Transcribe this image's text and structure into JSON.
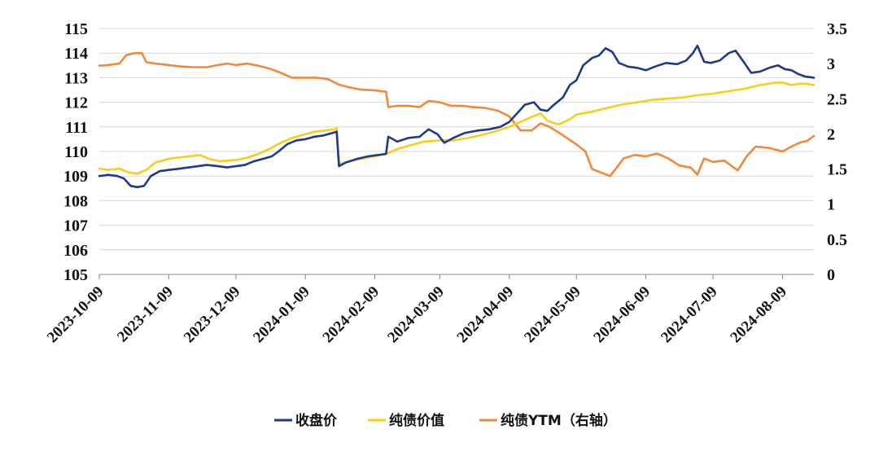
{
  "chart_data": {
    "type": "line",
    "title": "",
    "xlabel": "",
    "ylabel": "",
    "y_left": {
      "ylim": [
        105,
        115
      ],
      "ticks": [
        "105",
        "106",
        "107",
        "108",
        "109",
        "110",
        "111",
        "112",
        "113",
        "114",
        "115"
      ]
    },
    "y_right": {
      "ylim": [
        0,
        3.5
      ],
      "ticks": [
        "0",
        "0.5",
        "1",
        "1.5",
        "2",
        "2.5",
        "3",
        "3.5"
      ]
    },
    "x_range": [
      "2023-10-09",
      "2024-08-23"
    ],
    "x_ticks": [
      "2023-10-09",
      "2023-11-09",
      "2023-12-09",
      "2024-01-09",
      "2024-02-09",
      "2024-03-09",
      "2024-04-09",
      "2024-05-09",
      "2024-06-09",
      "2024-07-09",
      "2024-08-09"
    ],
    "grid": "horizontal",
    "legend": "bottom-center",
    "series": [
      {
        "name": "收盘价",
        "axis": "left",
        "color": "#1f3a8c",
        "points": [
          [
            "2023-10-09",
            109.0
          ],
          [
            "2023-10-13",
            109.05
          ],
          [
            "2023-10-17",
            109.0
          ],
          [
            "2023-10-20",
            108.9
          ],
          [
            "2023-10-23",
            108.6
          ],
          [
            "2023-10-26",
            108.55
          ],
          [
            "2023-10-29",
            108.6
          ],
          [
            "2023-11-01",
            109.0
          ],
          [
            "2023-11-05",
            109.2
          ],
          [
            "2023-11-09",
            109.25
          ],
          [
            "2023-11-14",
            109.3
          ],
          [
            "2023-11-18",
            109.35
          ],
          [
            "2023-11-22",
            109.4
          ],
          [
            "2023-11-26",
            109.45
          ],
          [
            "2023-12-01",
            109.4
          ],
          [
            "2023-12-05",
            109.35
          ],
          [
            "2023-12-09",
            109.4
          ],
          [
            "2023-12-13",
            109.45
          ],
          [
            "2023-12-17",
            109.6
          ],
          [
            "2023-12-21",
            109.7
          ],
          [
            "2023-12-25",
            109.8
          ],
          [
            "2023-12-28",
            110.0
          ],
          [
            "2024-01-01",
            110.3
          ],
          [
            "2024-01-05",
            110.45
          ],
          [
            "2024-01-09",
            110.5
          ],
          [
            "2024-01-13",
            110.6
          ],
          [
            "2024-01-17",
            110.65
          ],
          [
            "2024-01-21",
            110.75
          ],
          [
            "2024-01-23",
            110.8
          ],
          [
            "2024-01-24",
            109.4
          ],
          [
            "2024-01-27",
            109.55
          ],
          [
            "2024-02-01",
            109.7
          ],
          [
            "2024-02-06",
            109.8
          ],
          [
            "2024-02-10",
            109.85
          ],
          [
            "2024-02-14",
            109.9
          ],
          [
            "2024-02-15",
            110.6
          ],
          [
            "2024-02-19",
            110.4
          ],
          [
            "2024-02-24",
            110.55
          ],
          [
            "2024-02-29",
            110.6
          ],
          [
            "2024-03-04",
            110.9
          ],
          [
            "2024-03-08",
            110.7
          ],
          [
            "2024-03-11",
            110.35
          ],
          [
            "2024-03-15",
            110.55
          ],
          [
            "2024-03-20",
            110.75
          ],
          [
            "2024-03-26",
            110.85
          ],
          [
            "2024-03-31",
            110.9
          ],
          [
            "2024-04-05",
            111.0
          ],
          [
            "2024-04-09",
            111.2
          ],
          [
            "2024-04-13",
            111.6
          ],
          [
            "2024-04-16",
            111.9
          ],
          [
            "2024-04-20",
            112.0
          ],
          [
            "2024-04-23",
            111.7
          ],
          [
            "2024-04-26",
            111.65
          ],
          [
            "2024-04-29",
            111.9
          ],
          [
            "2024-05-03",
            112.2
          ],
          [
            "2024-05-06",
            112.7
          ],
          [
            "2024-05-09",
            112.9
          ],
          [
            "2024-05-12",
            113.5
          ],
          [
            "2024-05-16",
            113.8
          ],
          [
            "2024-05-19",
            113.9
          ],
          [
            "2024-05-22",
            114.2
          ],
          [
            "2024-05-25",
            114.05
          ],
          [
            "2024-05-28",
            113.6
          ],
          [
            "2024-06-01",
            113.45
          ],
          [
            "2024-06-05",
            113.4
          ],
          [
            "2024-06-09",
            113.3
          ],
          [
            "2024-06-13",
            113.45
          ],
          [
            "2024-06-18",
            113.6
          ],
          [
            "2024-06-23",
            113.55
          ],
          [
            "2024-06-27",
            113.7
          ],
          [
            "2024-06-30",
            114.0
          ],
          [
            "2024-07-02",
            114.3
          ],
          [
            "2024-07-05",
            113.65
          ],
          [
            "2024-07-08",
            113.6
          ],
          [
            "2024-07-12",
            113.7
          ],
          [
            "2024-07-16",
            114.0
          ],
          [
            "2024-07-19",
            114.1
          ],
          [
            "2024-07-23",
            113.6
          ],
          [
            "2024-07-26",
            113.2
          ],
          [
            "2024-07-30",
            113.25
          ],
          [
            "2024-08-03",
            113.4
          ],
          [
            "2024-08-07",
            113.5
          ],
          [
            "2024-08-10",
            113.35
          ],
          [
            "2024-08-13",
            113.3
          ],
          [
            "2024-08-16",
            113.15
          ],
          [
            "2024-08-19",
            113.05
          ],
          [
            "2024-08-23",
            113.0
          ]
        ]
      },
      {
        "name": "纯债价值",
        "axis": "left",
        "color": "#f5cf1b",
        "points": [
          [
            "2023-10-09",
            109.3
          ],
          [
            "2023-10-13",
            109.25
          ],
          [
            "2023-10-18",
            109.3
          ],
          [
            "2023-10-22",
            109.15
          ],
          [
            "2023-10-26",
            109.1
          ],
          [
            "2023-10-30",
            109.25
          ],
          [
            "2023-11-03",
            109.55
          ],
          [
            "2023-11-09",
            109.7
          ],
          [
            "2023-11-13",
            109.75
          ],
          [
            "2023-11-18",
            109.8
          ],
          [
            "2023-11-23",
            109.85
          ],
          [
            "2023-11-27",
            109.7
          ],
          [
            "2023-12-02",
            109.6
          ],
          [
            "2023-12-09",
            109.65
          ],
          [
            "2023-12-14",
            109.75
          ],
          [
            "2023-12-19",
            109.9
          ],
          [
            "2023-12-24",
            110.1
          ],
          [
            "2023-12-29",
            110.35
          ],
          [
            "2024-01-03",
            110.55
          ],
          [
            "2024-01-09",
            110.7
          ],
          [
            "2024-01-13",
            110.8
          ],
          [
            "2024-01-18",
            110.85
          ],
          [
            "2024-01-22",
            110.9
          ],
          [
            "2024-01-23",
            110.95
          ],
          [
            "2024-01-24",
            109.5
          ],
          [
            "2024-01-29",
            109.6
          ],
          [
            "2024-02-03",
            109.7
          ],
          [
            "2024-02-09",
            109.8
          ],
          [
            "2024-02-14",
            109.9
          ],
          [
            "2024-02-19",
            110.1
          ],
          [
            "2024-02-25",
            110.25
          ],
          [
            "2024-03-02",
            110.4
          ],
          [
            "2024-03-09",
            110.45
          ],
          [
            "2024-03-15",
            110.45
          ],
          [
            "2024-03-22",
            110.55
          ],
          [
            "2024-03-29",
            110.7
          ],
          [
            "2024-04-04",
            110.85
          ],
          [
            "2024-04-09",
            111.0
          ],
          [
            "2024-04-14",
            111.2
          ],
          [
            "2024-04-19",
            111.4
          ],
          [
            "2024-04-23",
            111.55
          ],
          [
            "2024-04-26",
            111.25
          ],
          [
            "2024-05-01",
            111.1
          ],
          [
            "2024-05-06",
            111.3
          ],
          [
            "2024-05-09",
            111.5
          ],
          [
            "2024-05-15",
            111.6
          ],
          [
            "2024-05-22",
            111.75
          ],
          [
            "2024-05-29",
            111.9
          ],
          [
            "2024-06-05",
            112.0
          ],
          [
            "2024-06-12",
            112.1
          ],
          [
            "2024-06-19",
            112.15
          ],
          [
            "2024-06-26",
            112.2
          ],
          [
            "2024-07-03",
            112.3
          ],
          [
            "2024-07-09",
            112.35
          ],
          [
            "2024-07-16",
            112.45
          ],
          [
            "2024-07-23",
            112.55
          ],
          [
            "2024-07-30",
            112.7
          ],
          [
            "2024-08-06",
            112.8
          ],
          [
            "2024-08-09",
            112.8
          ],
          [
            "2024-08-13",
            112.7
          ],
          [
            "2024-08-16",
            112.75
          ],
          [
            "2024-08-19",
            112.75
          ],
          [
            "2024-08-23",
            112.7
          ]
        ]
      },
      {
        "name": "纯债YTM（右轴）",
        "axis": "right",
        "color": "#ee8a3c",
        "points": [
          [
            "2023-10-09",
            2.97
          ],
          [
            "2023-10-13",
            2.98
          ],
          [
            "2023-10-18",
            3.0
          ],
          [
            "2023-10-21",
            3.12
          ],
          [
            "2023-10-25",
            3.15
          ],
          [
            "2023-10-28",
            3.15
          ],
          [
            "2023-10-30",
            3.02
          ],
          [
            "2023-11-03",
            3.0
          ],
          [
            "2023-11-09",
            2.98
          ],
          [
            "2023-11-14",
            2.96
          ],
          [
            "2023-11-20",
            2.95
          ],
          [
            "2023-11-26",
            2.95
          ],
          [
            "2023-12-01",
            2.98
          ],
          [
            "2023-12-05",
            3.0
          ],
          [
            "2023-12-09",
            2.98
          ],
          [
            "2023-12-14",
            3.0
          ],
          [
            "2023-12-19",
            2.97
          ],
          [
            "2023-12-24",
            2.93
          ],
          [
            "2023-12-29",
            2.87
          ],
          [
            "2024-01-03",
            2.8
          ],
          [
            "2024-01-09",
            2.8
          ],
          [
            "2024-01-14",
            2.8
          ],
          [
            "2024-01-19",
            2.78
          ],
          [
            "2024-01-24",
            2.7
          ],
          [
            "2024-01-29",
            2.66
          ],
          [
            "2024-02-03",
            2.63
          ],
          [
            "2024-02-09",
            2.62
          ],
          [
            "2024-02-14",
            2.6
          ],
          [
            "2024-02-15",
            2.38
          ],
          [
            "2024-02-19",
            2.4
          ],
          [
            "2024-02-24",
            2.4
          ],
          [
            "2024-02-29",
            2.38
          ],
          [
            "2024-03-04",
            2.47
          ],
          [
            "2024-03-09",
            2.45
          ],
          [
            "2024-03-14",
            2.4
          ],
          [
            "2024-03-19",
            2.4
          ],
          [
            "2024-03-24",
            2.38
          ],
          [
            "2024-03-29",
            2.37
          ],
          [
            "2024-04-04",
            2.33
          ],
          [
            "2024-04-09",
            2.25
          ],
          [
            "2024-04-14",
            2.05
          ],
          [
            "2024-04-19",
            2.05
          ],
          [
            "2024-04-23",
            2.15
          ],
          [
            "2024-04-27",
            2.1
          ],
          [
            "2024-05-02",
            2.0
          ],
          [
            "2024-05-09",
            1.85
          ],
          [
            "2024-05-13",
            1.75
          ],
          [
            "2024-05-16",
            1.5
          ],
          [
            "2024-05-20",
            1.45
          ],
          [
            "2024-05-24",
            1.4
          ],
          [
            "2024-05-27",
            1.52
          ],
          [
            "2024-05-30",
            1.65
          ],
          [
            "2024-06-04",
            1.7
          ],
          [
            "2024-06-09",
            1.68
          ],
          [
            "2024-06-14",
            1.72
          ],
          [
            "2024-06-19",
            1.65
          ],
          [
            "2024-06-24",
            1.55
          ],
          [
            "2024-06-29",
            1.52
          ],
          [
            "2024-07-02",
            1.42
          ],
          [
            "2024-07-05",
            1.65
          ],
          [
            "2024-07-09",
            1.6
          ],
          [
            "2024-07-14",
            1.62
          ],
          [
            "2024-07-20",
            1.48
          ],
          [
            "2024-07-24",
            1.68
          ],
          [
            "2024-07-28",
            1.82
          ],
          [
            "2024-08-03",
            1.8
          ],
          [
            "2024-08-09",
            1.75
          ],
          [
            "2024-08-13",
            1.82
          ],
          [
            "2024-08-17",
            1.88
          ],
          [
            "2024-08-20",
            1.9
          ],
          [
            "2024-08-23",
            1.97
          ]
        ]
      }
    ]
  }
}
